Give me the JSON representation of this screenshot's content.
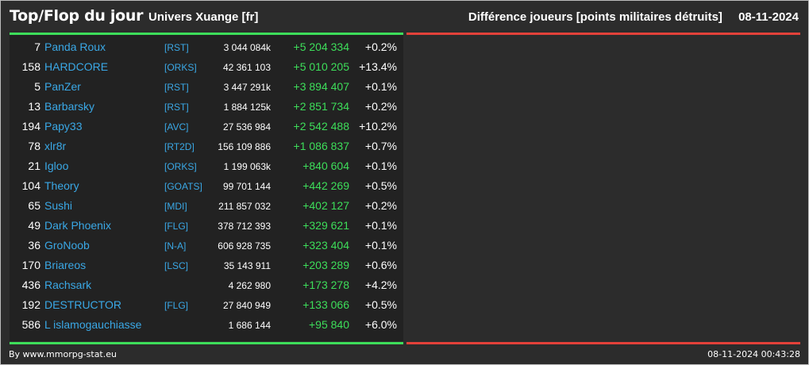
{
  "header": {
    "title": "Top/Flop du jour",
    "universe": "Univers Xuange [fr]",
    "metric": "Différence joueurs [points militaires détruits]",
    "date": "08-11-2024"
  },
  "top_players": [
    {
      "rank": "7",
      "name": "Panda Roux",
      "alliance": "[RST]",
      "points": "3 044 084k",
      "diff": "+5 204 334",
      "pct": "+0.2%"
    },
    {
      "rank": "158",
      "name": "HARDCORE",
      "alliance": "[ORKS]",
      "points": "42 361 103",
      "diff": "+5 010 205",
      "pct": "+13.4%"
    },
    {
      "rank": "5",
      "name": "PanZer",
      "alliance": "[RST]",
      "points": "3 447 291k",
      "diff": "+3 894 407",
      "pct": "+0.1%"
    },
    {
      "rank": "13",
      "name": "Barbarsky",
      "alliance": "[RST]",
      "points": "1 884 125k",
      "diff": "+2 851 734",
      "pct": "+0.2%"
    },
    {
      "rank": "194",
      "name": "Papy33",
      "alliance": "[AVC]",
      "points": "27 536 984",
      "diff": "+2 542 488",
      "pct": "+10.2%"
    },
    {
      "rank": "78",
      "name": "xlr8r",
      "alliance": "[RT2D]",
      "points": "156 109 886",
      "diff": "+1 086 837",
      "pct": "+0.7%"
    },
    {
      "rank": "21",
      "name": "Igloo",
      "alliance": "[ORKS]",
      "points": "1 199 063k",
      "diff": "+840 604",
      "pct": "+0.1%"
    },
    {
      "rank": "104",
      "name": "Theory",
      "alliance": "[GOATS]",
      "points": "99 701 144",
      "diff": "+442 269",
      "pct": "+0.5%"
    },
    {
      "rank": "65",
      "name": "Sushi",
      "alliance": "[MDI]",
      "points": "211 857 032",
      "diff": "+402 127",
      "pct": "+0.2%"
    },
    {
      "rank": "49",
      "name": "Dark Phoenix",
      "alliance": "[FLG]",
      "points": "378 712 393",
      "diff": "+329 621",
      "pct": "+0.1%"
    },
    {
      "rank": "36",
      "name": "GroNoob",
      "alliance": "[N-A]",
      "points": "606 928 735",
      "diff": "+323 404",
      "pct": "+0.1%"
    },
    {
      "rank": "170",
      "name": "Briareos",
      "alliance": "[LSC]",
      "points": "35 143 911",
      "diff": "+203 289",
      "pct": "+0.6%"
    },
    {
      "rank": "436",
      "name": "Rachsark",
      "alliance": "",
      "points": "4 262 980",
      "diff": "+173 278",
      "pct": "+4.2%"
    },
    {
      "rank": "192",
      "name": "DESTRUCTOR",
      "alliance": "[FLG]",
      "points": "27 840 949",
      "diff": "+133 066",
      "pct": "+0.5%"
    },
    {
      "rank": "586",
      "name": "L islamogauchiasse",
      "alliance": "",
      "points": "1 686 144",
      "diff": "+95 840",
      "pct": "+6.0%"
    }
  ],
  "footer": {
    "source": "By www.mmorpg-stat.eu",
    "timestamp": "08-11-2024 00:43:28"
  },
  "colors": {
    "top_accent": "#3dde5a",
    "flop_accent": "#e3413a",
    "link": "#3aa8e6",
    "background": "#2c2c2c"
  }
}
